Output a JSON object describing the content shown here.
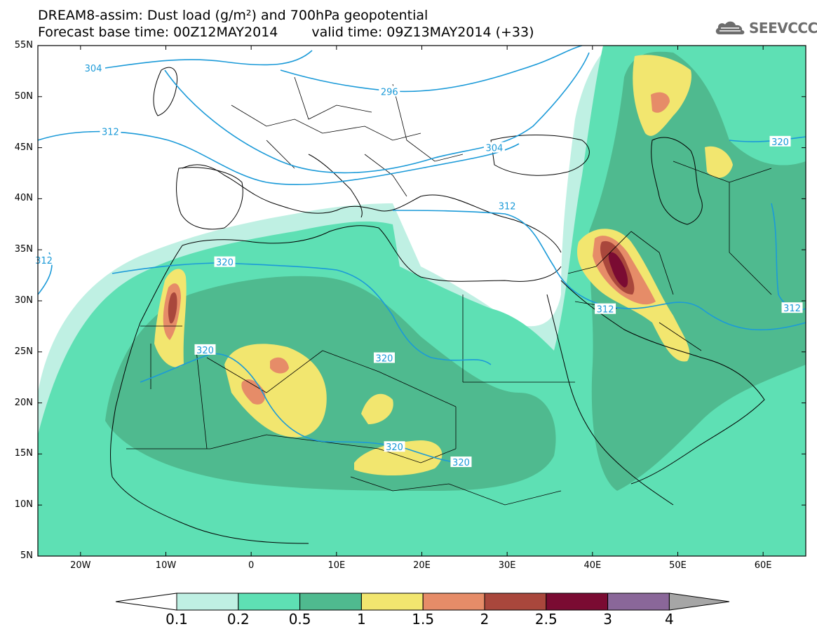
{
  "header": {
    "title_line1": "DREAM8-assim: Dust load (g/m²) and 700hPa geopotential",
    "base_time": "Forecast base time: 00Z12MAY2014",
    "valid_time": "valid time: 09Z13MAY2014 (+33)",
    "logo_text": "SEEVCCC",
    "logo_icon": "cloud-icon"
  },
  "map": {
    "lat_ticks": [
      "55N",
      "50N",
      "45N",
      "40N",
      "35N",
      "30N",
      "25N",
      "20N",
      "15N",
      "10N",
      "5N"
    ],
    "lon_ticks": [
      "20W",
      "10W",
      "0",
      "10E",
      "20E",
      "30E",
      "40E",
      "50E",
      "60E"
    ],
    "lon_range": [
      -25,
      65
    ],
    "lat_range": [
      5,
      55
    ],
    "contour_labels": [
      {
        "text": "304",
        "lon": -18.5,
        "lat": 52.8
      },
      {
        "text": "296",
        "lon": 16.2,
        "lat": 50.5
      },
      {
        "text": "312",
        "lon": -16.5,
        "lat": 46.6
      },
      {
        "text": "304",
        "lon": 28.5,
        "lat": 45.0
      },
      {
        "text": "312",
        "lon": 30.0,
        "lat": 39.3
      },
      {
        "text": "320",
        "lon": 62.0,
        "lat": 45.6
      },
      {
        "text": "312",
        "lon": -24.3,
        "lat": 34.0
      },
      {
        "text": "320",
        "lon": -3.1,
        "lat": 33.8
      },
      {
        "text": "312",
        "lon": 41.5,
        "lat": 29.2
      },
      {
        "text": "312",
        "lon": 63.4,
        "lat": 29.3
      },
      {
        "text": "320",
        "lon": -5.4,
        "lat": 25.2
      },
      {
        "text": "320",
        "lon": 15.6,
        "lat": 24.4
      },
      {
        "text": "320",
        "lon": 16.8,
        "lat": 15.7
      },
      {
        "text": "320",
        "lon": 24.6,
        "lat": 14.2
      }
    ]
  },
  "colorbar": {
    "labels": [
      "0.1",
      "0.2",
      "0.5",
      "1",
      "1.5",
      "2",
      "2.5",
      "3",
      "4"
    ],
    "colors": [
      "#bff0e3",
      "#5ee0b4",
      "#4fba8f",
      "#f2e66f",
      "#e68c68",
      "#a9473c",
      "#7a0b32",
      "#8a6799",
      "#a6a6a6"
    ],
    "under_color": "#ffffff"
  }
}
